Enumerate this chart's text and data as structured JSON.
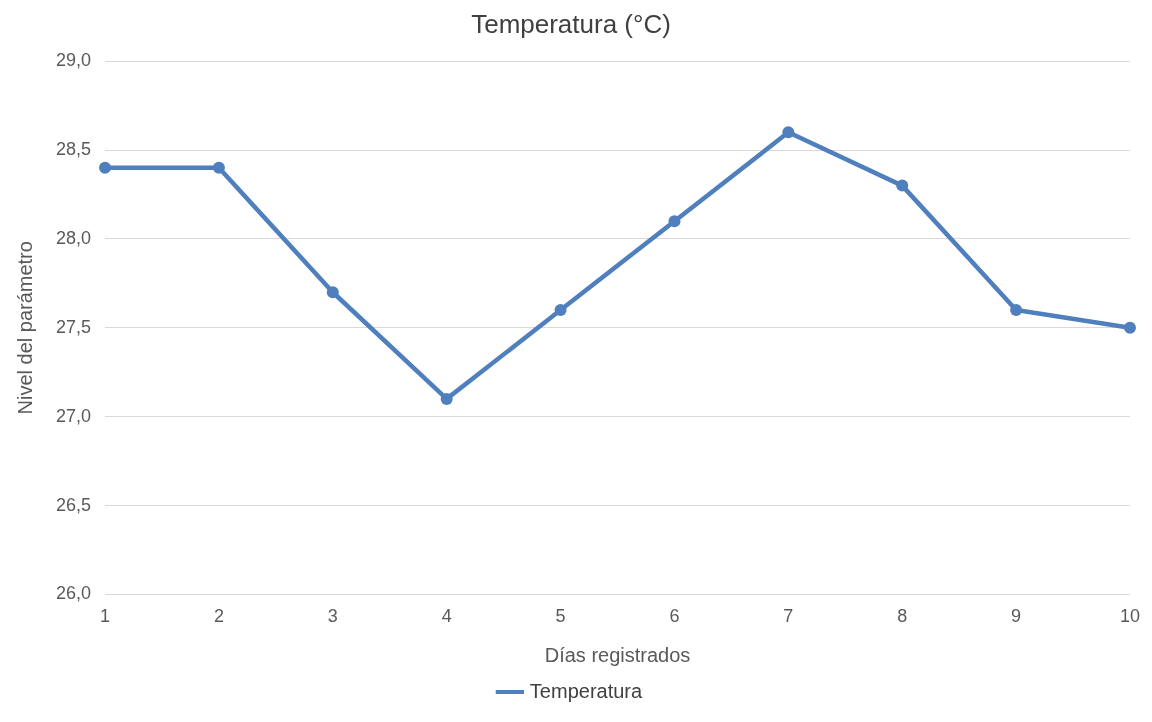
{
  "chart_data": {
    "type": "line",
    "title": "Temperatura (°C)",
    "xlabel": "Días registrados",
    "ylabel": "Nivel del parámetro",
    "categories": [
      "1",
      "2",
      "3",
      "4",
      "5",
      "6",
      "7",
      "8",
      "9",
      "10"
    ],
    "series": [
      {
        "name": "Temperatura",
        "color": "#4f7fbd",
        "values": [
          28.4,
          28.4,
          27.7,
          27.1,
          27.6,
          28.1,
          28.6,
          28.3,
          27.6,
          27.5
        ]
      }
    ],
    "ylim": [
      26,
      29
    ],
    "yticks": [
      {
        "value": 26,
        "label": "26,0"
      },
      {
        "value": 26.5,
        "label": "26,5"
      },
      {
        "value": 27,
        "label": "27,0"
      },
      {
        "value": 27.5,
        "label": "27,5"
      },
      {
        "value": 28,
        "label": "28,0"
      },
      {
        "value": 28.5,
        "label": "28,5"
      },
      {
        "value": 29,
        "label": "29,0"
      }
    ],
    "grid": "y",
    "legend": "bottom",
    "marker": "circle",
    "line_style": "solid"
  }
}
